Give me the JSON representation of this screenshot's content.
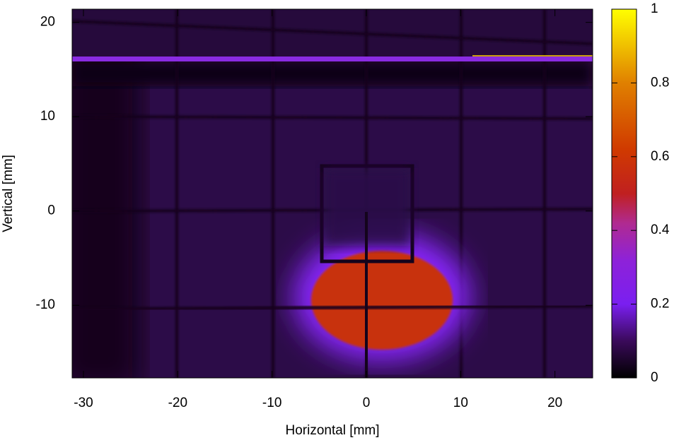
{
  "chart_data": {
    "type": "heatmap",
    "xlabel": "Horizontal [mm]",
    "ylabel": "Vertical [mm]",
    "xlim": [
      -31.2,
      24
    ],
    "xticks": [
      -30,
      -20,
      -10,
      0,
      10,
      20
    ],
    "ylim": [
      -17.7,
      21.4
    ],
    "yticks": [
      -10,
      0,
      10,
      20
    ],
    "colorbar": {
      "clim": [
        0,
        1
      ],
      "ticks": [
        0,
        0.2,
        0.4,
        0.6,
        0.8,
        1
      ]
    }
  }
}
